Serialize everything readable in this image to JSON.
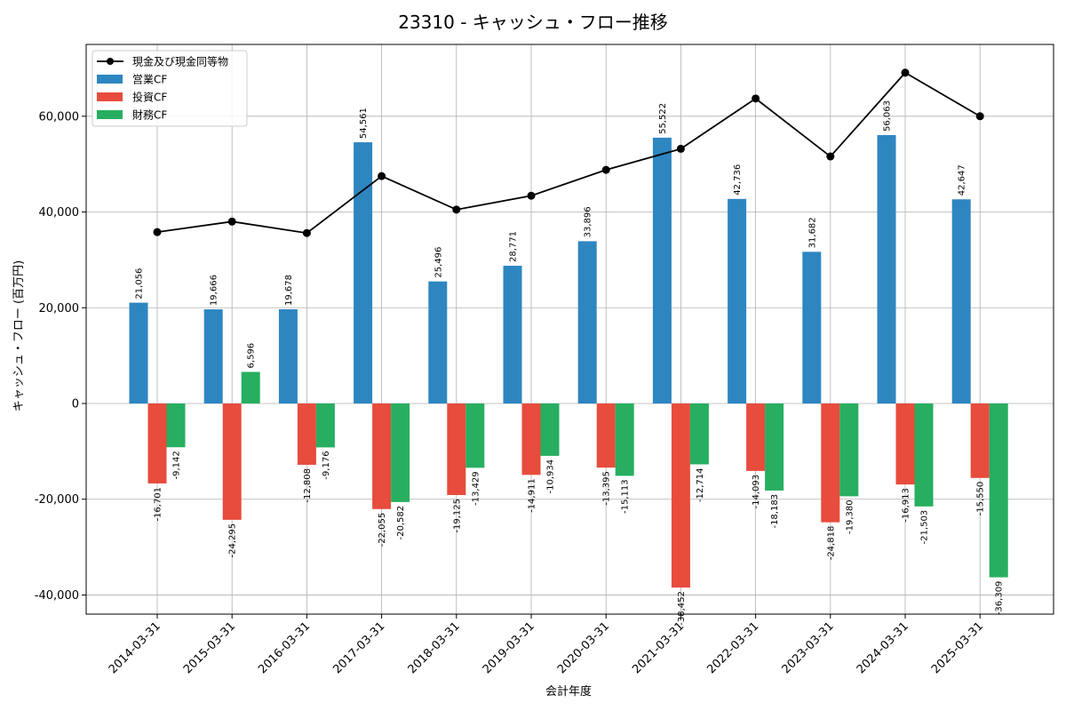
{
  "chart_data": {
    "type": "bar",
    "title": "23310 - キャッシュ・フロー推移",
    "xlabel": "会計年度",
    "ylabel": "キャッシュ・フロー (百万円)",
    "ylim": [
      -44000,
      75000
    ],
    "yticks": [
      -40000,
      -20000,
      0,
      20000,
      40000,
      60000
    ],
    "ytick_labels": [
      "-40,000",
      "-20,000",
      "0",
      "20,000",
      "40,000",
      "60,000"
    ],
    "grid": true,
    "legend_position": "top-left",
    "categories": [
      "2014-03-31",
      "2015-03-31",
      "2016-03-31",
      "2017-03-31",
      "2018-03-31",
      "2019-03-31",
      "2020-03-31",
      "2021-03-31",
      "2022-03-31",
      "2023-03-31",
      "2024-03-31",
      "2025-03-31"
    ],
    "series": [
      {
        "name": "営業CF",
        "kind": "bar",
        "color": "#2e86c1",
        "values": [
          21056,
          19666,
          19678,
          54561,
          25496,
          28771,
          33896,
          55522,
          42736,
          31682,
          56063,
          42647
        ],
        "labels": [
          "21,056",
          "19,666",
          "19,678",
          "54,561",
          "25,496",
          "28,771",
          "33,896",
          "55,522",
          "42,736",
          "31,682",
          "56,063",
          "42,647"
        ]
      },
      {
        "name": "投資CF",
        "kind": "bar",
        "color": "#e74c3c",
        "values": [
          -16701,
          -24295,
          -12808,
          -22055,
          -19125,
          -14911,
          -13395,
          -38452,
          -14093,
          -24818,
          -16913,
          -15550
        ],
        "labels": [
          "-16,701",
          "-24,295",
          "-12,808",
          "-22,055",
          "-19,125",
          "-14,911",
          "-13,395",
          "-38,452",
          "-14,093",
          "-24,818",
          "-16,913",
          "-15,550"
        ]
      },
      {
        "name": "財務CF",
        "kind": "bar",
        "color": "#27ae60",
        "values": [
          -9142,
          6596,
          -9176,
          -20582,
          -13429,
          -10934,
          -15113,
          -12714,
          -18183,
          -19380,
          -21503,
          -36309
        ],
        "labels": [
          "-9,142",
          "6,596",
          "-9,176",
          "-20,582",
          "-13,429",
          "-10,934",
          "-15,113",
          "-12,714",
          "-18,183",
          "-19,380",
          "-21,503",
          "-36,309"
        ]
      },
      {
        "name": "現金及び現金同等物",
        "kind": "line",
        "color": "#000000",
        "values": [
          35800,
          38000,
          35600,
          47500,
          40500,
          43400,
          48800,
          53200,
          63700,
          51600,
          69100,
          60000
        ]
      }
    ]
  }
}
